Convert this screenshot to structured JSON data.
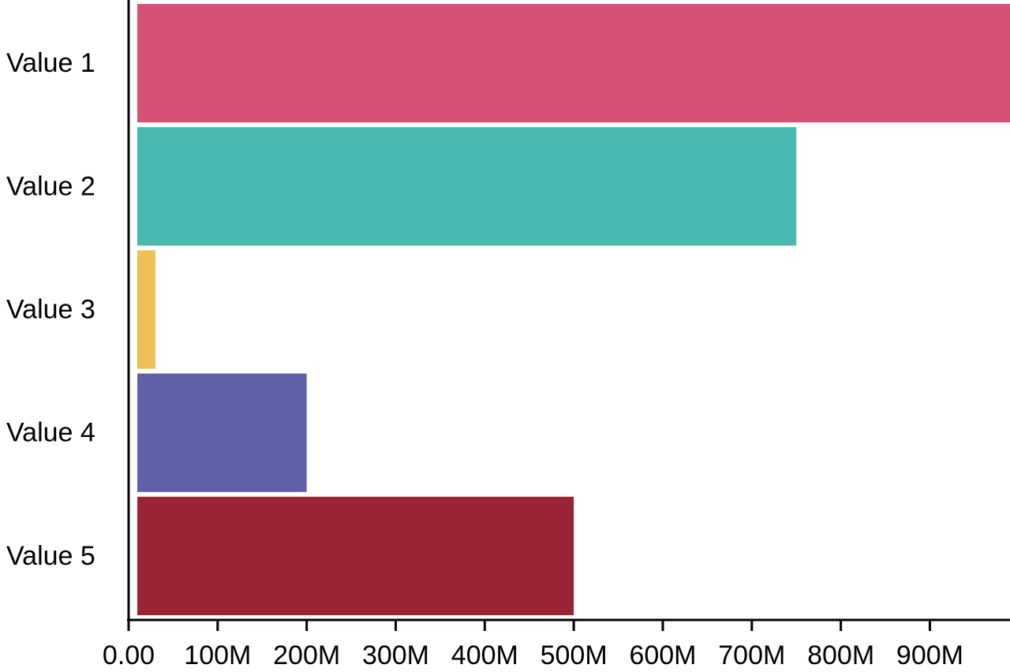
{
  "chart_data": {
    "type": "bar",
    "orientation": "horizontal",
    "categories": [
      "Value 1",
      "Value 2",
      "Value 3",
      "Value 4",
      "Value 5"
    ],
    "values": [
      990000000,
      750000000,
      30000000,
      200000000,
      500000000
    ],
    "colors": [
      "#d65274",
      "#47b9ae",
      "#efbf55",
      "#5e61a8",
      "#9a2335"
    ],
    "xlim": [
      0,
      990000000
    ],
    "xticks": [
      0,
      100000000,
      200000000,
      300000000,
      400000000,
      500000000,
      600000000,
      700000000,
      800000000,
      900000000
    ],
    "xtick_labels": [
      "0.00",
      "100M",
      "200M",
      "300M",
      "400M",
      "500M",
      "600M",
      "700M",
      "800M",
      "900M"
    ],
    "title": "",
    "xlabel": "",
    "ylabel": "",
    "grid": false,
    "legend": "none"
  }
}
